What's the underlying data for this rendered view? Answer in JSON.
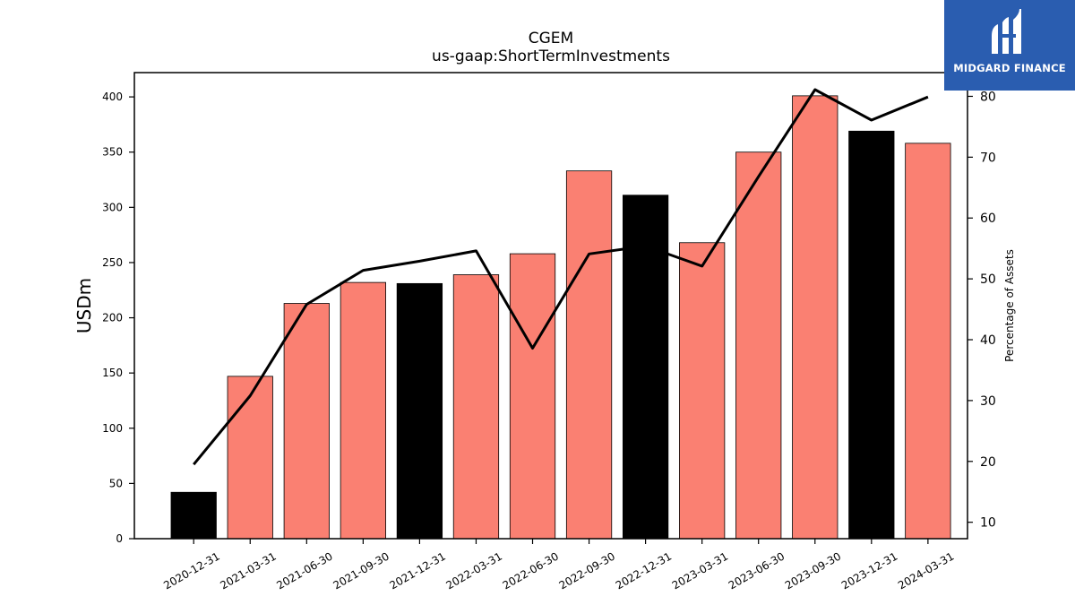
{
  "chart_data": {
    "type": "bar",
    "title": "CGEM",
    "subtitle": "us-gaap:ShortTermInvestments",
    "ylabel": "USDm",
    "ylabel_right": "Percentage of Assets",
    "categories": [
      "2020-12-31",
      "2021-03-31",
      "2021-06-30",
      "2021-09-30",
      "2021-12-31",
      "2022-03-31",
      "2022-06-30",
      "2022-09-30",
      "2022-12-31",
      "2023-03-31",
      "2023-06-30",
      "2023-09-30",
      "2023-12-31",
      "2024-03-31"
    ],
    "series": [
      {
        "type": "bar",
        "axis": "left",
        "values": [
          42,
          147,
          213,
          232,
          231,
          239,
          258,
          333,
          311,
          268,
          350,
          401,
          369,
          358
        ],
        "colors": [
          "#000000",
          "#fa8072",
          "#fa8072",
          "#fa8072",
          "#000000",
          "#fa8072",
          "#fa8072",
          "#fa8072",
          "#000000",
          "#fa8072",
          "#fa8072",
          "#fa8072",
          "#000000",
          "#fa8072"
        ]
      },
      {
        "type": "line",
        "axis": "right",
        "color": "#000000",
        "values": [
          19.5,
          30.8,
          45.8,
          51.4,
          52.9,
          54.6,
          38.6,
          54.1,
          55.4,
          52.1,
          66.8,
          81.1,
          76.1,
          79.9
        ]
      }
    ],
    "ylim": [
      0,
      422
    ],
    "yticks": [
      0,
      50,
      100,
      150,
      200,
      250,
      300,
      350,
      400
    ],
    "ylim_right": [
      7.3,
      83.9
    ],
    "yticks_right": [
      10,
      20,
      30,
      40,
      50,
      60,
      70,
      80
    ],
    "grid": false
  },
  "logo": {
    "text": "MIDGARD FINANCE"
  }
}
